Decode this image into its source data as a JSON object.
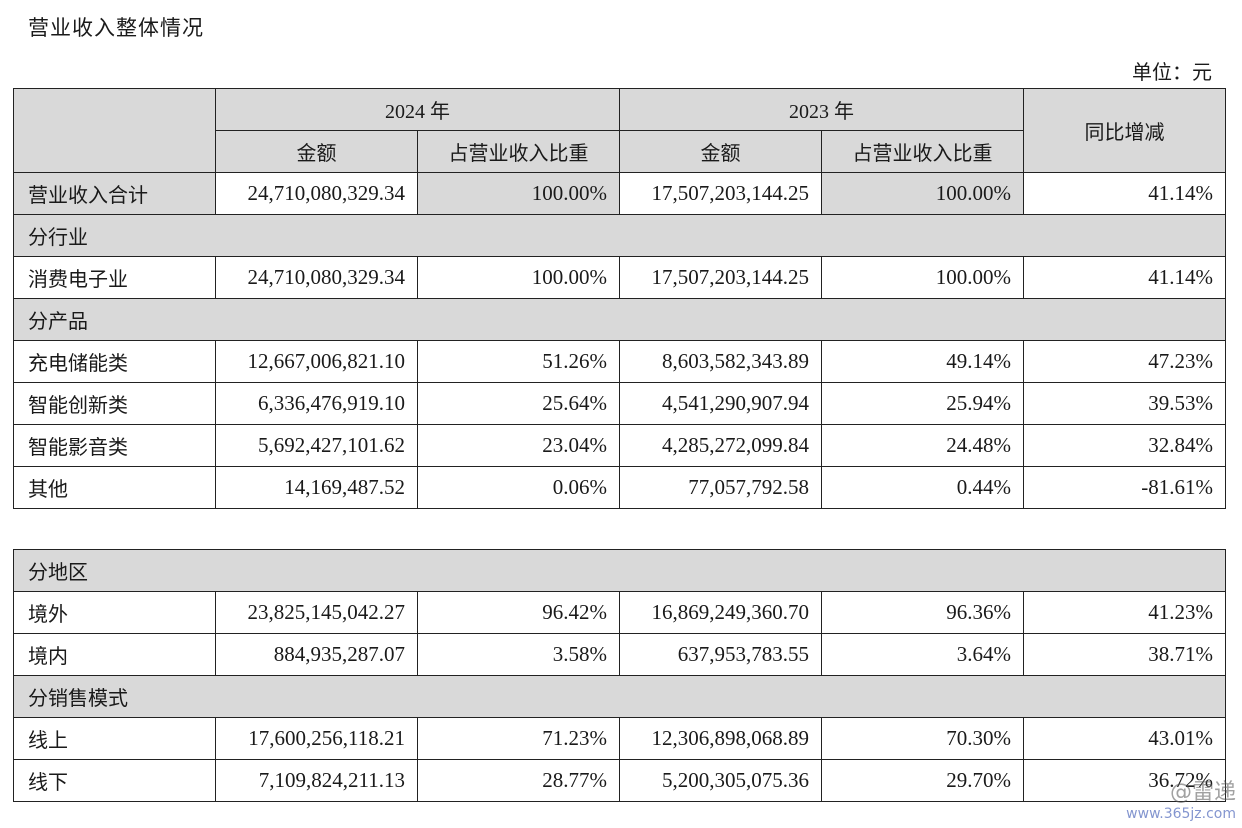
{
  "title": "营业收入整体情况",
  "unit": "单位：元",
  "header": {
    "year_2024": "2024 年",
    "year_2023": "2023 年",
    "amount": "金额",
    "share": "占营业收入比重",
    "yoy": "同比增减"
  },
  "total": {
    "label": "营业收入合计",
    "amount_2024": "24,710,080,329.34",
    "share_2024": "100.00%",
    "amount_2023": "17,507,203,144.25",
    "share_2023": "100.00%",
    "yoy": "41.14%"
  },
  "sections": {
    "industry": "分行业",
    "product": "分产品",
    "region": "分地区",
    "sales_mode": "分销售模式"
  },
  "rows": {
    "consumer_electronics": {
      "label": "消费电子业",
      "amount_2024": "24,710,080,329.34",
      "share_2024": "100.00%",
      "amount_2023": "17,507,203,144.25",
      "share_2023": "100.00%",
      "yoy": "41.14%"
    },
    "charging": {
      "label": "充电储能类",
      "amount_2024": "12,667,006,821.10",
      "share_2024": "51.26%",
      "amount_2023": "8,603,582,343.89",
      "share_2023": "49.14%",
      "yoy": "47.23%"
    },
    "innovation": {
      "label": "智能创新类",
      "amount_2024": "6,336,476,919.10",
      "share_2024": "25.64%",
      "amount_2023": "4,541,290,907.94",
      "share_2023": "25.94%",
      "yoy": "39.53%"
    },
    "audio_video": {
      "label": "智能影音类",
      "amount_2024": "5,692,427,101.62",
      "share_2024": "23.04%",
      "amount_2023": "4,285,272,099.84",
      "share_2023": "24.48%",
      "yoy": "32.84%"
    },
    "other": {
      "label": "其他",
      "amount_2024": "14,169,487.52",
      "share_2024": "0.06%",
      "amount_2023": "77,057,792.58",
      "share_2023": "0.44%",
      "yoy": "-81.61%"
    },
    "overseas": {
      "label": "境外",
      "amount_2024": "23,825,145,042.27",
      "share_2024": "96.42%",
      "amount_2023": "16,869,249,360.70",
      "share_2023": "96.36%",
      "yoy": "41.23%"
    },
    "domestic": {
      "label": "境内",
      "amount_2024": "884,935,287.07",
      "share_2024": "3.58%",
      "amount_2023": "637,953,783.55",
      "share_2023": "3.64%",
      "yoy": "38.71%"
    },
    "online": {
      "label": "线上",
      "amount_2024": "17,600,256,118.21",
      "share_2024": "71.23%",
      "amount_2023": "12,306,898,068.89",
      "share_2023": "70.30%",
      "yoy": "43.01%"
    },
    "offline": {
      "label": "线下",
      "amount_2024": "7,109,824,211.13",
      "share_2024": "28.77%",
      "amount_2023": "5,200,305,075.36",
      "share_2023": "29.70%",
      "yoy": "36.72%"
    }
  },
  "watermark": {
    "logo_text": "@雷递",
    "url": "www.365jz.com"
  }
}
